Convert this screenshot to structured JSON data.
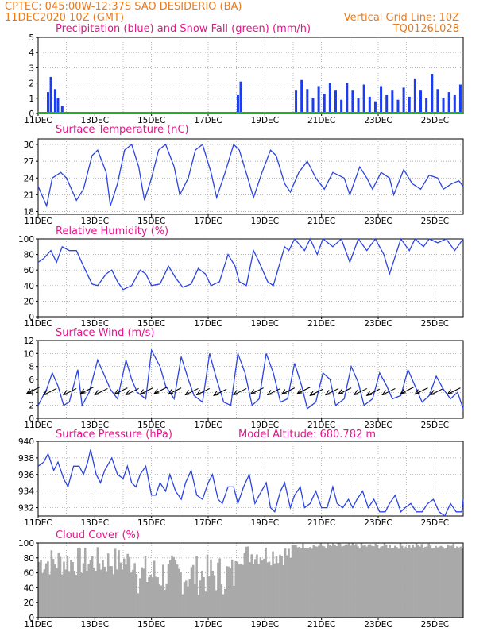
{
  "header": {
    "line1_left": "CPTEC:   045:00W-12:37S  SAO DESIDERIO (BA)",
    "line2_left": "11DEC2020 10Z (GMT)",
    "line2_right": "Vertical Grid Line: 10Z",
    "line3_right": "TQ0126L028"
  },
  "colors": {
    "precip": "#1a3df0",
    "snow": "#21b021",
    "line": "#2b44e0",
    "cloud": "#a9a9a9",
    "header": "#e87a1e",
    "title": "#e6158a"
  },
  "x_tick_labels": [
    "11DEC",
    "13DEC",
    "15DEC",
    "17DEC",
    "19DEC",
    "21DEC",
    "23DEC",
    "25DEC"
  ],
  "chart_data": [
    {
      "type": "bar",
      "title": "Precipitation (blue) and Snow Fall (green) (mm/h)",
      "yticks": [
        0,
        1,
        2,
        3,
        4,
        5
      ],
      "ylim": [
        0,
        5
      ],
      "x_days": [
        0,
        15
      ],
      "series": [
        {
          "name": "Precipitation",
          "values": [
            [
              0.35,
              1.4
            ],
            [
              0.45,
              2.4
            ],
            [
              0.6,
              1.6
            ],
            [
              0.7,
              1.0
            ],
            [
              0.85,
              0.5
            ],
            [
              7.05,
              1.2
            ],
            [
              7.15,
              2.1
            ],
            [
              9.1,
              1.5
            ],
            [
              9.3,
              2.2
            ],
            [
              9.5,
              1.6
            ],
            [
              9.7,
              1.0
            ],
            [
              9.9,
              1.8
            ],
            [
              10.1,
              1.3
            ],
            [
              10.3,
              2.0
            ],
            [
              10.5,
              1.5
            ],
            [
              10.7,
              0.9
            ],
            [
              10.9,
              2.0
            ],
            [
              11.1,
              1.5
            ],
            [
              11.3,
              1.0
            ],
            [
              11.5,
              1.9
            ],
            [
              11.7,
              1.1
            ],
            [
              11.9,
              0.8
            ],
            [
              12.1,
              1.8
            ],
            [
              12.3,
              1.2
            ],
            [
              12.5,
              1.5
            ],
            [
              12.7,
              0.9
            ],
            [
              12.9,
              1.7
            ],
            [
              13.1,
              1.1
            ],
            [
              13.3,
              2.3
            ],
            [
              13.5,
              1.5
            ],
            [
              13.7,
              1.0
            ],
            [
              13.9,
              2.6
            ],
            [
              14.1,
              1.6
            ],
            [
              14.3,
              1.0
            ],
            [
              14.5,
              1.4
            ],
            [
              14.7,
              1.2
            ],
            [
              14.9,
              1.9
            ]
          ]
        },
        {
          "name": "Snow Fall",
          "values": []
        }
      ]
    },
    {
      "type": "line",
      "title": "Surface Temperature (nC)",
      "yticks": [
        18,
        21,
        24,
        27,
        30
      ],
      "ylim": [
        17.5,
        31
      ],
      "x_days": [
        0,
        15
      ],
      "values": [
        [
          0,
          22.5
        ],
        [
          0.3,
          19
        ],
        [
          0.5,
          24
        ],
        [
          0.8,
          25
        ],
        [
          1,
          24
        ],
        [
          1.35,
          20
        ],
        [
          1.6,
          22
        ],
        [
          1.9,
          28
        ],
        [
          2.1,
          29
        ],
        [
          2.4,
          25
        ],
        [
          2.55,
          19
        ],
        [
          2.8,
          23
        ],
        [
          3.05,
          29
        ],
        [
          3.3,
          30
        ],
        [
          3.55,
          26
        ],
        [
          3.75,
          20
        ],
        [
          4.0,
          24
        ],
        [
          4.25,
          29
        ],
        [
          4.5,
          30
        ],
        [
          4.8,
          26
        ],
        [
          5.0,
          21
        ],
        [
          5.3,
          24
        ],
        [
          5.55,
          29
        ],
        [
          5.8,
          30
        ],
        [
          6.1,
          25
        ],
        [
          6.3,
          20.5
        ],
        [
          6.6,
          25
        ],
        [
          6.9,
          30
        ],
        [
          7.1,
          29
        ],
        [
          7.4,
          24
        ],
        [
          7.6,
          20.5
        ],
        [
          7.9,
          25
        ],
        [
          8.2,
          29
        ],
        [
          8.4,
          28
        ],
        [
          8.7,
          23
        ],
        [
          8.9,
          21.5
        ],
        [
          9.2,
          25
        ],
        [
          9.5,
          27
        ],
        [
          9.8,
          24
        ],
        [
          10.1,
          22
        ],
        [
          10.4,
          25
        ],
        [
          10.8,
          24
        ],
        [
          11.0,
          21
        ],
        [
          11.35,
          26
        ],
        [
          11.6,
          24
        ],
        [
          11.8,
          22
        ],
        [
          12.1,
          25
        ],
        [
          12.4,
          24
        ],
        [
          12.55,
          21
        ],
        [
          12.9,
          25.5
        ],
        [
          13.2,
          23
        ],
        [
          13.5,
          22
        ],
        [
          13.8,
          24.5
        ],
        [
          14.1,
          24
        ],
        [
          14.3,
          22
        ],
        [
          14.6,
          23
        ],
        [
          14.85,
          23.5
        ],
        [
          15,
          22.5
        ]
      ]
    },
    {
      "type": "line",
      "title": "Relative Humidity (%)",
      "yticks": [
        0,
        20,
        40,
        60,
        80,
        100
      ],
      "ylim": [
        0,
        100
      ],
      "x_days": [
        0,
        15
      ],
      "values": [
        [
          0,
          70
        ],
        [
          0.2,
          75
        ],
        [
          0.45,
          85
        ],
        [
          0.65,
          70
        ],
        [
          0.85,
          90
        ],
        [
          1.1,
          85
        ],
        [
          1.35,
          85
        ],
        [
          1.6,
          65
        ],
        [
          1.9,
          42
        ],
        [
          2.1,
          40
        ],
        [
          2.4,
          55
        ],
        [
          2.6,
          60
        ],
        [
          2.8,
          45
        ],
        [
          3.0,
          35
        ],
        [
          3.3,
          40
        ],
        [
          3.6,
          60
        ],
        [
          3.8,
          55
        ],
        [
          4.0,
          40
        ],
        [
          4.3,
          42
        ],
        [
          4.6,
          65
        ],
        [
          4.85,
          50
        ],
        [
          5.1,
          38
        ],
        [
          5.4,
          42
        ],
        [
          5.65,
          62
        ],
        [
          5.9,
          55
        ],
        [
          6.1,
          40
        ],
        [
          6.4,
          45
        ],
        [
          6.7,
          80
        ],
        [
          6.95,
          65
        ],
        [
          7.1,
          45
        ],
        [
          7.35,
          40
        ],
        [
          7.6,
          85
        ],
        [
          7.8,
          70
        ],
        [
          8.1,
          45
        ],
        [
          8.3,
          40
        ],
        [
          8.7,
          90
        ],
        [
          8.85,
          85
        ],
        [
          9.05,
          100
        ],
        [
          9.4,
          85
        ],
        [
          9.6,
          100
        ],
        [
          9.85,
          80
        ],
        [
          10.05,
          100
        ],
        [
          10.4,
          90
        ],
        [
          10.7,
          100
        ],
        [
          11.0,
          70
        ],
        [
          11.3,
          100
        ],
        [
          11.6,
          85
        ],
        [
          11.9,
          100
        ],
        [
          12.2,
          80
        ],
        [
          12.4,
          55
        ],
        [
          12.8,
          100
        ],
        [
          13.1,
          85
        ],
        [
          13.3,
          100
        ],
        [
          13.6,
          90
        ],
        [
          13.8,
          100
        ],
        [
          14.1,
          95
        ],
        [
          14.4,
          100
        ],
        [
          14.7,
          85
        ],
        [
          15,
          100
        ]
      ]
    },
    {
      "type": "line",
      "title": "Surface Wind (m/s)",
      "yticks": [
        0,
        2,
        4,
        6,
        8,
        10,
        12
      ],
      "ylim": [
        0,
        12
      ],
      "x_days": [
        0,
        15
      ],
      "values": [
        [
          0,
          2
        ],
        [
          0.3,
          4.5
        ],
        [
          0.5,
          7
        ],
        [
          0.7,
          5
        ],
        [
          0.9,
          2
        ],
        [
          1.1,
          2.5
        ],
        [
          1.4,
          7.5
        ],
        [
          1.55,
          2
        ],
        [
          1.8,
          4
        ],
        [
          2.1,
          9
        ],
        [
          2.3,
          7
        ],
        [
          2.55,
          4.5
        ],
        [
          2.8,
          3
        ],
        [
          3.1,
          9
        ],
        [
          3.3,
          6
        ],
        [
          3.5,
          4
        ],
        [
          3.8,
          3
        ],
        [
          4.0,
          10.5
        ],
        [
          4.3,
          8
        ],
        [
          4.5,
          5
        ],
        [
          4.8,
          3
        ],
        [
          5.05,
          9.5
        ],
        [
          5.3,
          6
        ],
        [
          5.5,
          3.5
        ],
        [
          5.8,
          2.5
        ],
        [
          6.05,
          10
        ],
        [
          6.3,
          6
        ],
        [
          6.55,
          2.5
        ],
        [
          6.8,
          2
        ],
        [
          7.05,
          10
        ],
        [
          7.3,
          7
        ],
        [
          7.55,
          2
        ],
        [
          7.8,
          3
        ],
        [
          8.05,
          10
        ],
        [
          8.3,
          7
        ],
        [
          8.55,
          2.5
        ],
        [
          8.8,
          3
        ],
        [
          9.05,
          8.5
        ],
        [
          9.3,
          5
        ],
        [
          9.5,
          1.5
        ],
        [
          9.8,
          2.5
        ],
        [
          10.05,
          7
        ],
        [
          10.3,
          6
        ],
        [
          10.5,
          2
        ],
        [
          10.8,
          3
        ],
        [
          11.05,
          8
        ],
        [
          11.3,
          5.5
        ],
        [
          11.5,
          2
        ],
        [
          11.8,
          3
        ],
        [
          12.05,
          7
        ],
        [
          12.3,
          5
        ],
        [
          12.5,
          3
        ],
        [
          12.8,
          3.5
        ],
        [
          13.05,
          7.5
        ],
        [
          13.3,
          5
        ],
        [
          13.55,
          2.5
        ],
        [
          13.8,
          3.5
        ],
        [
          14.05,
          6.5
        ],
        [
          14.3,
          4.5
        ],
        [
          14.55,
          3
        ],
        [
          14.8,
          4
        ],
        [
          15,
          1.5
        ]
      ],
      "barbs": [
        [
          0.05,
          4.8
        ],
        [
          0.65,
          4.6
        ],
        [
          1.35,
          4.6
        ],
        [
          1.95,
          4.8
        ],
        [
          2.45,
          4.6
        ],
        [
          3.15,
          4.7
        ],
        [
          3.55,
          4.6
        ],
        [
          4.05,
          4.7
        ],
        [
          4.55,
          4.8
        ],
        [
          5.05,
          4.7
        ],
        [
          5.65,
          4.6
        ],
        [
          6.05,
          4.6
        ],
        [
          6.65,
          4.5
        ],
        [
          7.35,
          4.6
        ],
        [
          7.95,
          4.7
        ],
        [
          8.55,
          4.6
        ],
        [
          9.05,
          4.7
        ],
        [
          9.6,
          4.8
        ],
        [
          10.05,
          4.5
        ],
        [
          10.6,
          4.6
        ],
        [
          11.05,
          4.7
        ],
        [
          11.6,
          4.6
        ],
        [
          12.05,
          4.5
        ],
        [
          12.6,
          4.6
        ],
        [
          13.25,
          4.8
        ],
        [
          13.75,
          4.7
        ],
        [
          14.3,
          4.6
        ],
        [
          14.9,
          4.7
        ]
      ]
    },
    {
      "type": "line",
      "title": "Surface Pressure (hPa)",
      "annotation": "Model Altitude: 680.782 m",
      "yticks": [
        932,
        934,
        936,
        938,
        940
      ],
      "ylim": [
        931,
        940
      ],
      "x_days": [
        0,
        15
      ],
      "values": [
        [
          0,
          937
        ],
        [
          0.2,
          937.5
        ],
        [
          0.35,
          938.5
        ],
        [
          0.55,
          936.5
        ],
        [
          0.7,
          937.5
        ],
        [
          0.9,
          935.5
        ],
        [
          1.05,
          934.5
        ],
        [
          1.25,
          937
        ],
        [
          1.45,
          937
        ],
        [
          1.6,
          936
        ],
        [
          1.75,
          937.5
        ],
        [
          1.85,
          939
        ],
        [
          2.05,
          936
        ],
        [
          2.2,
          935
        ],
        [
          2.35,
          936.5
        ],
        [
          2.6,
          938
        ],
        [
          2.8,
          936
        ],
        [
          3.0,
          935.5
        ],
        [
          3.15,
          937
        ],
        [
          3.3,
          935
        ],
        [
          3.45,
          934.5
        ],
        [
          3.6,
          936
        ],
        [
          3.8,
          937
        ],
        [
          4.0,
          933.5
        ],
        [
          4.15,
          933.5
        ],
        [
          4.3,
          935
        ],
        [
          4.5,
          934
        ],
        [
          4.65,
          936
        ],
        [
          4.85,
          934
        ],
        [
          5.05,
          933
        ],
        [
          5.2,
          935
        ],
        [
          5.4,
          936.5
        ],
        [
          5.6,
          933.5
        ],
        [
          5.8,
          933
        ],
        [
          6.0,
          935
        ],
        [
          6.15,
          936
        ],
        [
          6.35,
          933
        ],
        [
          6.5,
          932.5
        ],
        [
          6.7,
          934.5
        ],
        [
          6.9,
          934.5
        ],
        [
          7.05,
          932.5
        ],
        [
          7.25,
          934.5
        ],
        [
          7.45,
          936
        ],
        [
          7.65,
          932.5
        ],
        [
          7.8,
          933.5
        ],
        [
          8.05,
          935
        ],
        [
          8.2,
          932
        ],
        [
          8.35,
          931.5
        ],
        [
          8.55,
          934
        ],
        [
          8.7,
          935
        ],
        [
          8.9,
          932
        ],
        [
          9.05,
          933.5
        ],
        [
          9.25,
          934.5
        ],
        [
          9.4,
          932
        ],
        [
          9.6,
          932.5
        ],
        [
          9.8,
          934
        ],
        [
          10.0,
          932
        ],
        [
          10.2,
          932
        ],
        [
          10.4,
          934.5
        ],
        [
          10.55,
          932.5
        ],
        [
          10.75,
          932
        ],
        [
          10.95,
          933
        ],
        [
          11.1,
          932
        ],
        [
          11.25,
          933
        ],
        [
          11.45,
          934
        ],
        [
          11.65,
          932
        ],
        [
          11.85,
          933
        ],
        [
          12.05,
          931.5
        ],
        [
          12.25,
          931.5
        ],
        [
          12.4,
          932.5
        ],
        [
          12.6,
          933.5
        ],
        [
          12.8,
          931.5
        ],
        [
          12.95,
          932
        ],
        [
          13.15,
          932.5
        ],
        [
          13.35,
          931.5
        ],
        [
          13.55,
          931.5
        ],
        [
          13.75,
          932.5
        ],
        [
          13.95,
          933
        ],
        [
          14.15,
          931.5
        ],
        [
          14.35,
          931
        ],
        [
          14.55,
          932.5
        ],
        [
          14.75,
          931.5
        ],
        [
          14.95,
          931.5
        ],
        [
          15,
          933
        ]
      ]
    },
    {
      "type": "area",
      "title": "Cloud Cover (%)",
      "yticks": [
        0,
        20,
        40,
        60,
        80,
        100
      ],
      "ylim": [
        0,
        100
      ],
      "x_days": [
        0,
        15
      ],
      "seed": 7
    }
  ]
}
